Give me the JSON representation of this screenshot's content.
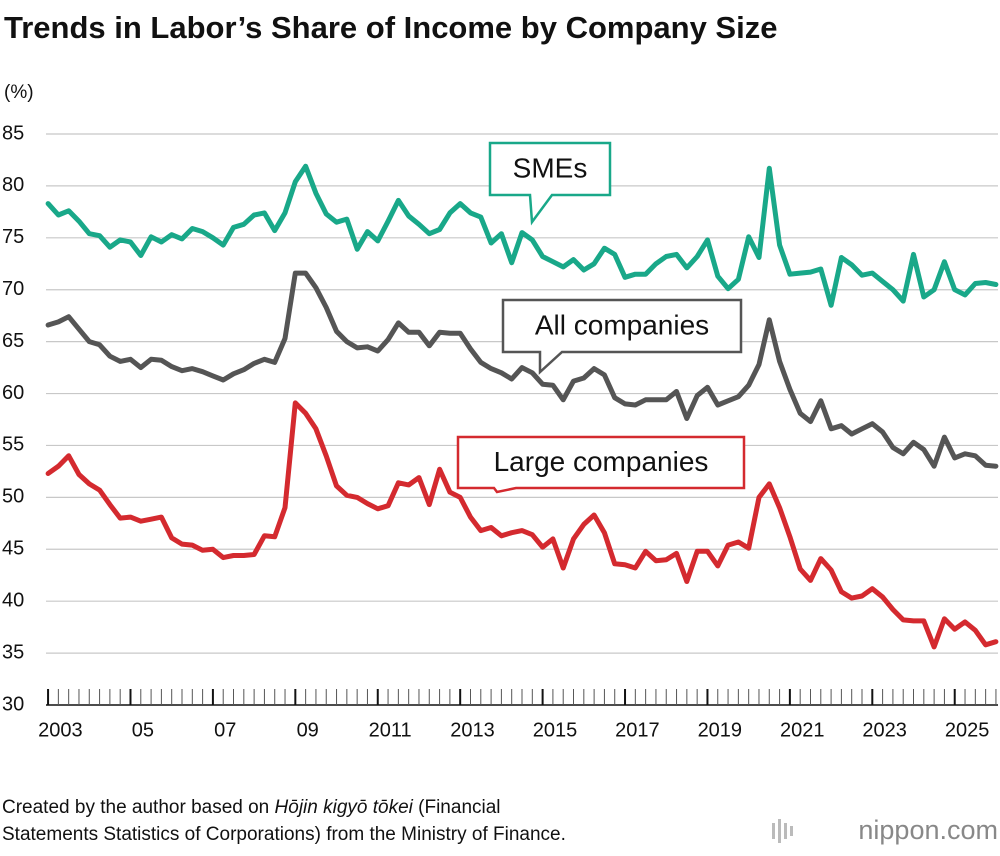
{
  "chart_data": {
    "type": "line",
    "title": "Trends in Labor’s Share of Income by Company Size",
    "y_unit": "(%)",
    "x": [
      2003,
      2003.25,
      2003.5,
      2003.75,
      2004,
      2004.25,
      2004.5,
      2004.75,
      2005,
      2005.25,
      2005.5,
      2005.75,
      2006,
      2006.25,
      2006.5,
      2006.75,
      2007,
      2007.25,
      2007.5,
      2007.75,
      2008,
      2008.25,
      2008.5,
      2008.75,
      2009,
      2009.25,
      2009.5,
      2009.75,
      2010,
      2010.25,
      2010.5,
      2010.75,
      2011,
      2011.25,
      2011.5,
      2011.75,
      2012,
      2012.25,
      2012.5,
      2012.75,
      2013,
      2013.25,
      2013.5,
      2013.75,
      2014,
      2014.25,
      2014.5,
      2014.75,
      2015,
      2015.25,
      2015.5,
      2015.75,
      2016,
      2016.25,
      2016.5,
      2016.75,
      2017,
      2017.25,
      2017.5,
      2017.75,
      2018,
      2018.25,
      2018.5,
      2018.75,
      2019,
      2019.25,
      2019.5,
      2019.75,
      2020,
      2020.25,
      2020.5,
      2020.75,
      2021,
      2021.25,
      2021.5,
      2021.75,
      2022,
      2022.25,
      2022.5,
      2022.75,
      2023,
      2023.25,
      2023.5,
      2023.75,
      2024,
      2024.25,
      2024.5,
      2024.75,
      2025,
      2025.25,
      2025.5,
      2025.75,
      2026
    ],
    "series": [
      {
        "name": "SMEs",
        "color": "#19a889",
        "values": [
          78.3,
          77.2,
          77.6,
          76.6,
          75.4,
          75.2,
          74.1,
          74.8,
          74.6,
          73.3,
          75.1,
          74.6,
          75.3,
          74.9,
          75.9,
          75.6,
          75.0,
          74.3,
          76.0,
          76.3,
          77.2,
          77.4,
          75.7,
          77.4,
          80.4,
          81.9,
          79.3,
          77.3,
          76.5,
          76.8,
          73.9,
          75.6,
          74.7,
          76.6,
          78.6,
          77.1,
          76.3,
          75.4,
          75.8,
          77.4,
          78.3,
          77.4,
          77.0,
          74.5,
          75.4,
          72.6,
          75.5,
          74.8,
          73.2,
          72.7,
          72.2,
          72.9,
          71.9,
          72.5,
          74.0,
          73.4,
          71.2,
          71.5,
          71.5,
          72.5,
          73.2,
          73.4,
          72.1,
          73.2,
          74.8,
          71.3,
          70.1,
          71.0,
          75.1,
          73.1,
          81.7,
          74.3,
          71.5,
          71.6,
          71.7,
          72.0,
          68.5,
          73.1,
          72.4,
          71.4,
          71.6,
          70.8,
          70.0,
          68.9,
          73.4,
          69.3,
          70.0,
          72.7,
          70.0,
          69.5,
          70.6,
          70.7,
          70.5
        ]
      },
      {
        "name": "All companies",
        "color": "#555555",
        "values": [
          66.6,
          66.9,
          67.4,
          66.2,
          65.0,
          64.7,
          63.6,
          63.1,
          63.3,
          62.5,
          63.3,
          63.2,
          62.6,
          62.2,
          62.4,
          62.1,
          61.7,
          61.3,
          61.9,
          62.3,
          62.9,
          63.3,
          63.0,
          65.3,
          71.6,
          71.6,
          70.2,
          68.3,
          66.0,
          65.0,
          64.4,
          64.5,
          64.1,
          65.2,
          66.8,
          65.9,
          65.9,
          64.6,
          65.9,
          65.8,
          65.8,
          64.3,
          63.0,
          62.4,
          62.0,
          61.4,
          62.5,
          62.0,
          60.9,
          60.8,
          59.4,
          61.2,
          61.5,
          62.4,
          61.8,
          59.6,
          59.0,
          58.9,
          59.4,
          59.4,
          59.4,
          60.2,
          57.6,
          59.8,
          60.6,
          58.9,
          59.3,
          59.7,
          60.8,
          62.8,
          67.1,
          63.1,
          60.4,
          58.1,
          57.3,
          59.3,
          56.6,
          56.9,
          56.1,
          56.6,
          57.1,
          56.3,
          54.8,
          54.2,
          55.3,
          54.6,
          53.0,
          55.8,
          53.8,
          54.2,
          54.0,
          53.1,
          53.0
        ]
      },
      {
        "name": "Large companies",
        "color": "#d42a2f",
        "values": [
          52.3,
          53.0,
          54.0,
          52.2,
          51.3,
          50.7,
          49.3,
          48.0,
          48.1,
          47.7,
          47.9,
          48.1,
          46.1,
          45.5,
          45.4,
          44.9,
          45.0,
          44.2,
          44.4,
          44.4,
          44.5,
          46.3,
          46.2,
          49.0,
          59.1,
          58.1,
          56.6,
          54.0,
          51.1,
          50.2,
          50.0,
          49.4,
          48.9,
          49.2,
          51.4,
          51.2,
          51.9,
          49.3,
          52.7,
          50.5,
          50.0,
          48.1,
          46.8,
          47.1,
          46.3,
          46.6,
          46.8,
          46.4,
          45.2,
          46.0,
          43.2,
          46.0,
          47.4,
          48.3,
          46.6,
          43.6,
          43.5,
          43.2,
          44.8,
          43.9,
          44.0,
          44.6,
          41.9,
          44.8,
          44.8,
          43.4,
          45.4,
          45.7,
          45.1,
          50.0,
          51.3,
          49.0,
          46.2,
          43.1,
          42.0,
          44.1,
          43.0,
          40.9,
          40.3,
          40.5,
          41.2,
          40.4,
          39.2,
          38.2,
          38.1,
          38.1,
          35.6,
          38.3,
          37.3,
          38.0,
          37.2,
          35.8,
          36.1
        ]
      }
    ],
    "xlim": [
      2002.95,
      2026.05
    ],
    "xticks": [
      {
        "value": 2003,
        "label": "2003"
      },
      {
        "value": 2005,
        "label": "05"
      },
      {
        "value": 2007,
        "label": "07"
      },
      {
        "value": 2009,
        "label": "09"
      },
      2011,
      2013,
      2015,
      2017,
      2019,
      2021,
      2023,
      2025
    ],
    "ylim": [
      30,
      85
    ],
    "yticks": [
      30,
      35,
      40,
      45,
      50,
      55,
      60,
      65,
      70,
      75,
      80,
      85
    ],
    "grid": true,
    "source": [
      "Created by the author based on ",
      "Hōjin kigyō tōkei",
      " (Financial",
      "Statements Statistics of Corporations) from the Ministry of Finance."
    ],
    "logo": "nippon.com"
  }
}
